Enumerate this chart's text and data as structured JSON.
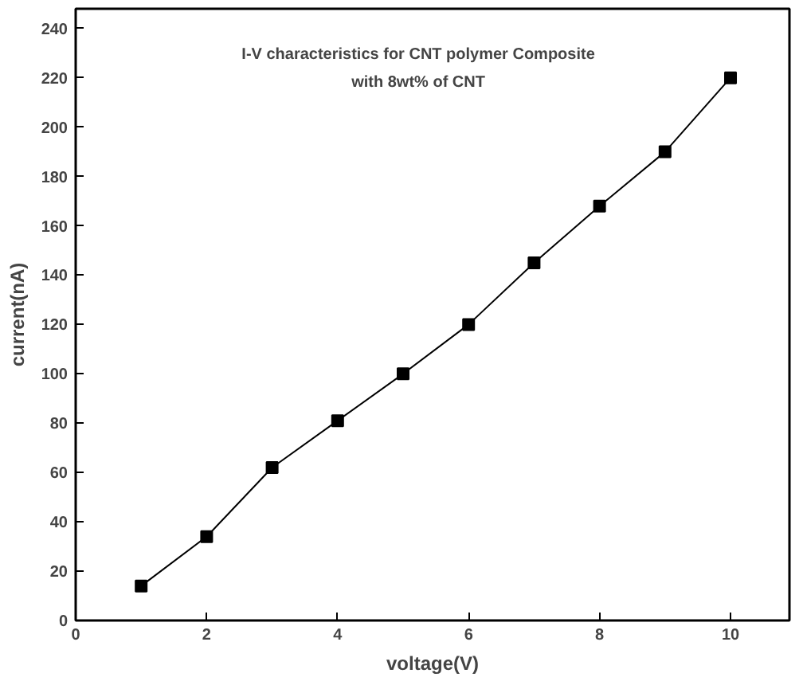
{
  "chart_data": {
    "type": "line",
    "title": "I-V characteristics for CNT polymer Composite\nwith 8wt% of CNT",
    "xlabel": "voltage(V)",
    "ylabel": "current(nA)",
    "x": [
      1,
      2,
      3,
      4,
      5,
      6,
      7,
      8,
      9,
      10
    ],
    "series": [
      {
        "color": "#000000",
        "values": [
          14,
          34,
          62,
          81,
          100,
          120,
          145,
          168,
          190,
          220
        ]
      }
    ],
    "xlim": [
      0,
      10.9
    ],
    "xticks": [
      0,
      2,
      4,
      6,
      8,
      10
    ],
    "ylim": [
      0,
      248
    ],
    "yticks": [
      0,
      20,
      40,
      60,
      80,
      100,
      120,
      140,
      160,
      180,
      200,
      220,
      240
    ],
    "marker": "square",
    "line_style": "solid",
    "grid": false
  }
}
